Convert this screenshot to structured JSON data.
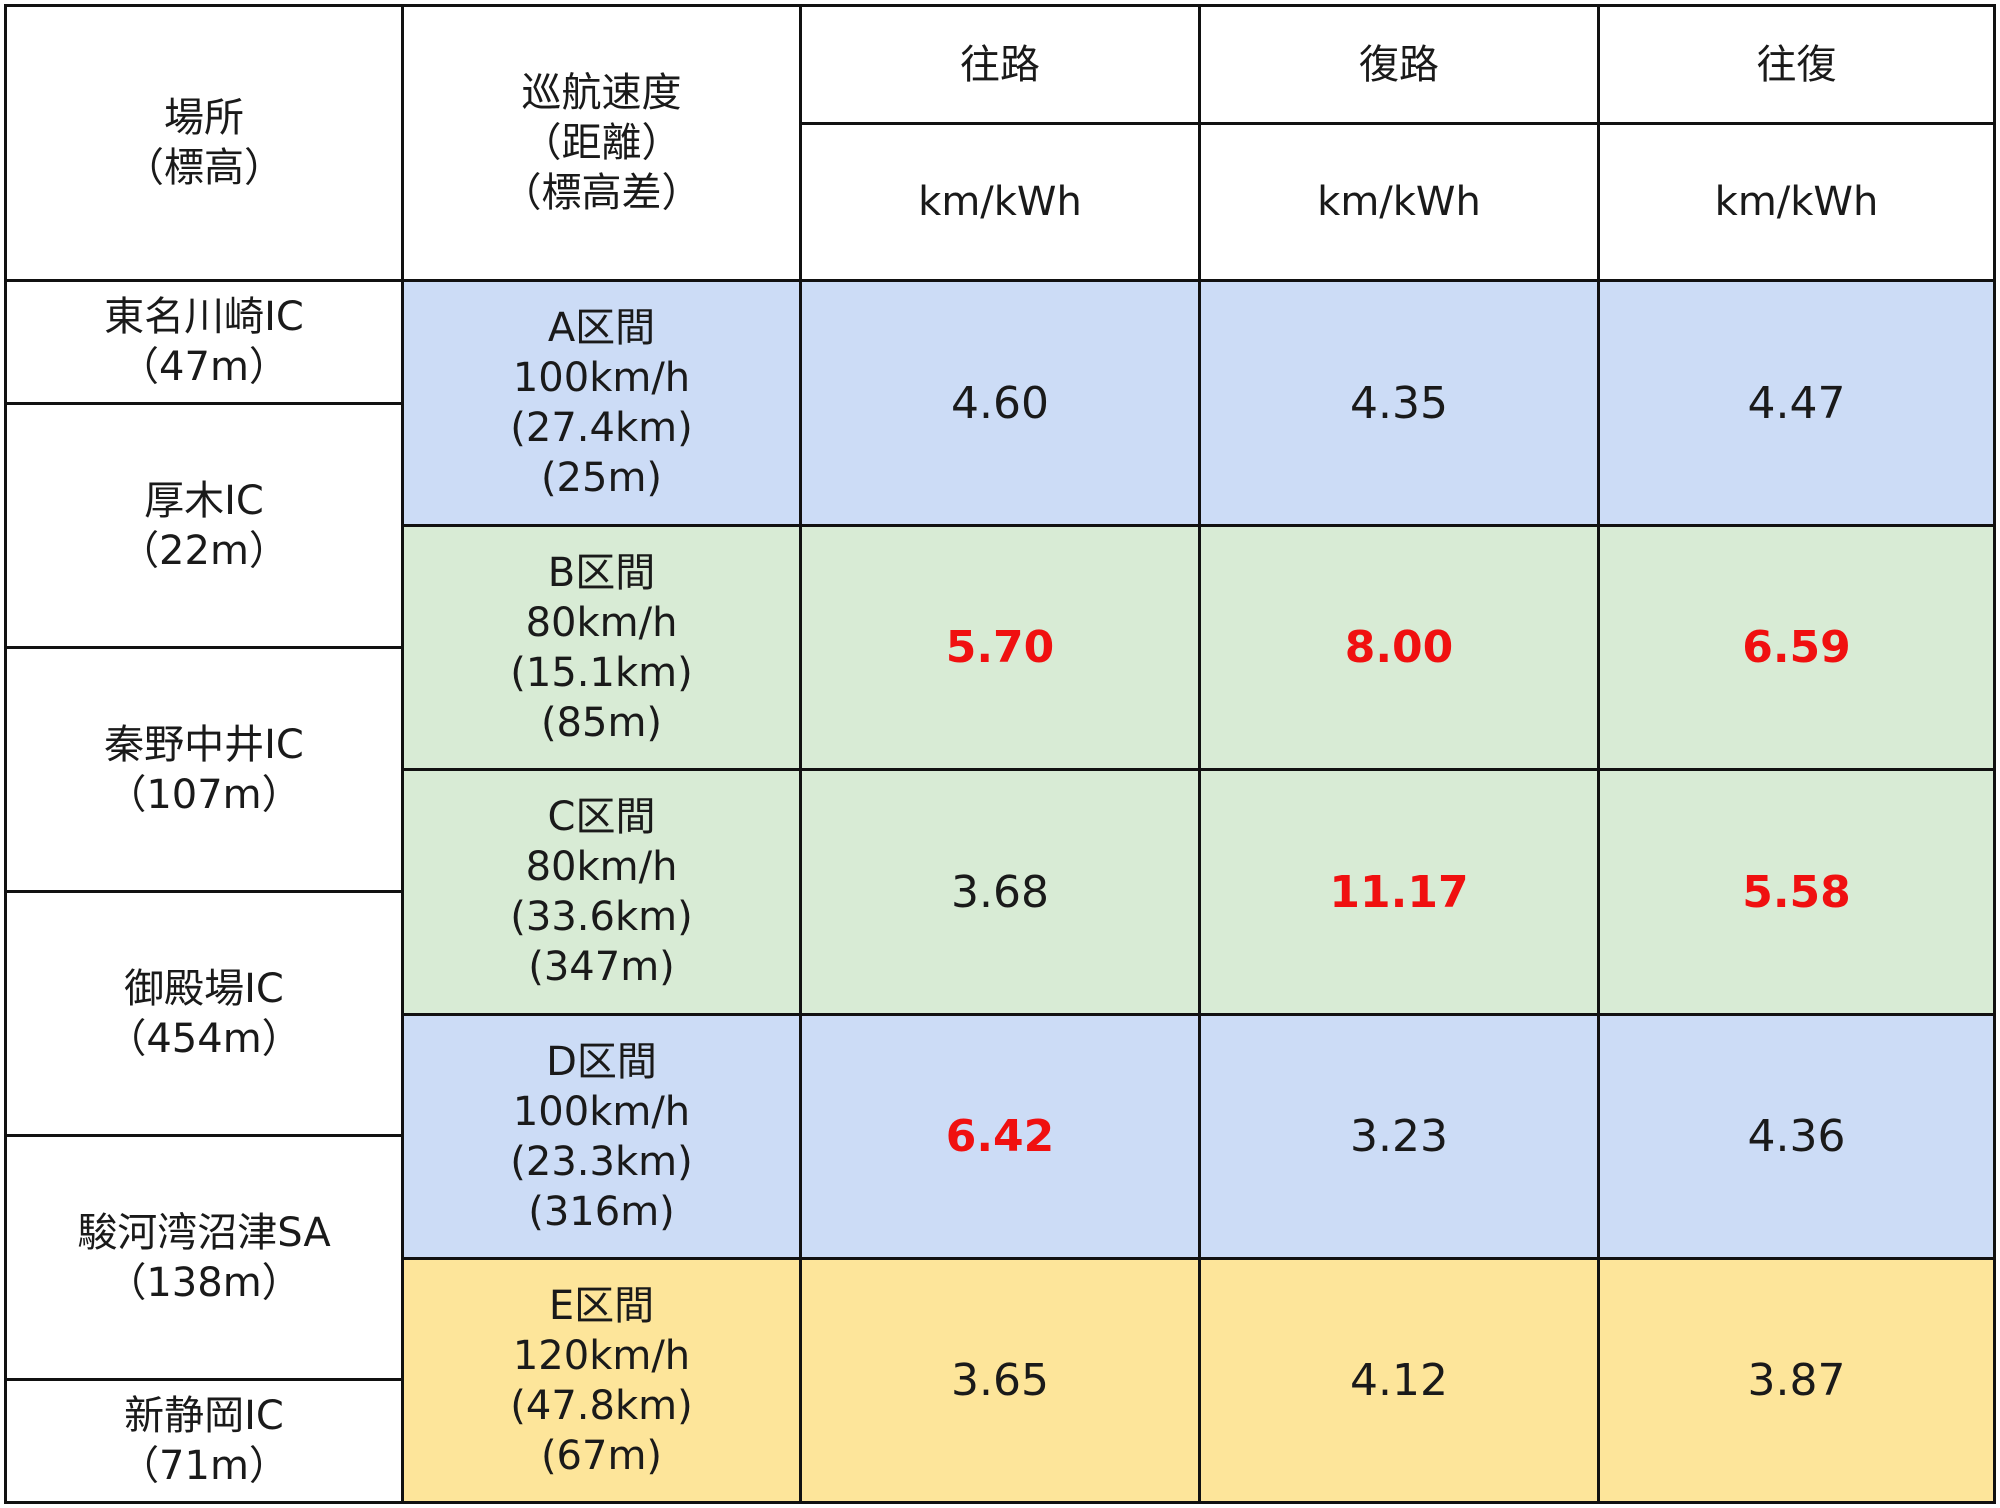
{
  "colors": {
    "blue": "#ccdcf6",
    "green": "#d8ebd5",
    "yellow": "#fde59a",
    "highlight": "#f01010",
    "border": "#111111"
  },
  "header": {
    "place": [
      "場所",
      "（標高）"
    ],
    "speed": [
      "巡航速度",
      "（距離）",
      "（標高差）"
    ],
    "outbound": "往路",
    "return": "復路",
    "round": "往復",
    "unit_outbound": "km/kWh",
    "unit_return": "km/kWh",
    "unit_round": "km/kWh"
  },
  "locations": [
    {
      "name": "東名川崎IC",
      "elevation": "（47m）"
    },
    {
      "name": "厚木IC",
      "elevation": "（22m）"
    },
    {
      "name": "秦野中井IC",
      "elevation": "（107m）"
    },
    {
      "name": "御殿場IC",
      "elevation": "（454m）"
    },
    {
      "name": "駿河湾沼津SA",
      "elevation": "（138m）"
    },
    {
      "name": "新静岡IC",
      "elevation": "（71m）"
    }
  ],
  "segments": [
    {
      "label": "A区間",
      "speed": "100km/h",
      "distance": "(27.4km)",
      "elev": "(25m)",
      "color": "blue",
      "outbound": "4.60",
      "return": "4.35",
      "round": "4.47",
      "hl": [
        false,
        false,
        false
      ]
    },
    {
      "label": "B区間",
      "speed": "80km/h",
      "distance": "(15.1km)",
      "elev": "(85m)",
      "color": "green",
      "outbound": "5.70",
      "return": "8.00",
      "round": "6.59",
      "hl": [
        true,
        true,
        true
      ]
    },
    {
      "label": "C区間",
      "speed": "80km/h",
      "distance": "(33.6km)",
      "elev": "(347m)",
      "color": "green",
      "outbound": "3.68",
      "return": "11.17",
      "round": "5.58",
      "hl": [
        false,
        true,
        true
      ]
    },
    {
      "label": "D区間",
      "speed": "100km/h",
      "distance": "(23.3km)",
      "elev": "(316m)",
      "color": "blue",
      "outbound": "6.42",
      "return": "3.23",
      "round": "4.36",
      "hl": [
        true,
        false,
        false
      ]
    },
    {
      "label": "E区間",
      "speed": "120km/h",
      "distance": "(47.8km)",
      "elev": "(67m)",
      "color": "yellow",
      "outbound": "3.65",
      "return": "4.12",
      "round": "3.87",
      "hl": [
        false,
        false,
        false
      ]
    }
  ]
}
